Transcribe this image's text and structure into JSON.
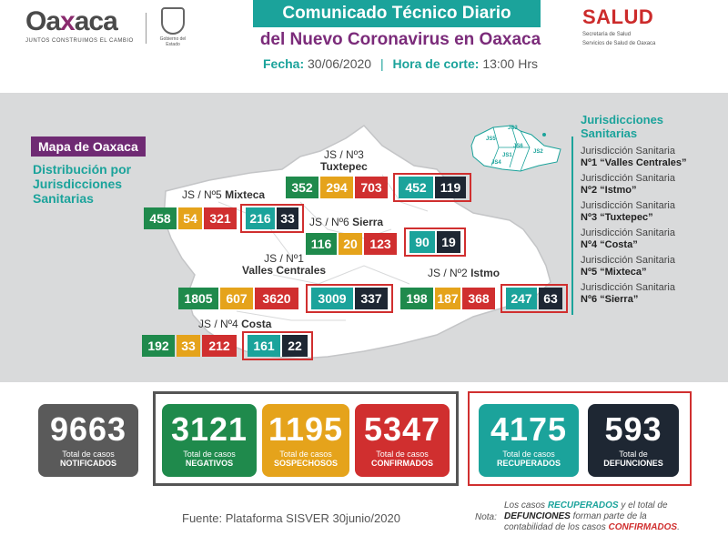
{
  "header": {
    "logo_word_1": "Oa",
    "logo_x": "x",
    "logo_word_2": "aca",
    "logo_tagline": "JUNTOS CONSTRUIMOS EL CAMBIO",
    "seal_caption": "Gobierno del Estado",
    "title": "Comunicado Técnico Diario",
    "subtitle": "del Nuevo Coronavirus en Oaxaca",
    "fecha_label": "Fecha:",
    "fecha_value": "30/06/2020",
    "hora_label": "Hora de corte:",
    "hora_value": "13:00 Hrs",
    "salud": "SALUD",
    "salud_sub_1": "Secretaría de Salud",
    "salud_sub_2": "Servicios de Salud de Oaxaca"
  },
  "map": {
    "mapa_label": "Mapa de Oaxaca",
    "distrib_1": "Distribución por",
    "distrib_2": "Jurisdicciones",
    "distrib_3": "Sanitarias",
    "jurisdictions": [
      {
        "label_1": "JS / Nº3",
        "label_2": "Tuxtepec",
        "values": [
          "352",
          "294",
          "703",
          "452",
          "119"
        ]
      },
      {
        "label_1": "JS / Nº5",
        "label_2": "Mixteca",
        "values": [
          "458",
          "54",
          "321",
          "216",
          "33"
        ]
      },
      {
        "label_1": "JS / Nº6",
        "label_2": "Sierra",
        "values": [
          "116",
          "20",
          "123",
          "90",
          "19"
        ]
      },
      {
        "label_1": "JS / Nº1",
        "label_2": "Valles Centrales",
        "values": [
          "1805",
          "607",
          "3620",
          "3009",
          "337"
        ]
      },
      {
        "label_1": "JS / Nº2",
        "label_2": "Istmo",
        "values": [
          "198",
          "187",
          "368",
          "247",
          "63"
        ]
      },
      {
        "label_1": "JS / Nº4",
        "label_2": "Costa",
        "values": [
          "192",
          "33",
          "212",
          "161",
          "22"
        ]
      }
    ],
    "mini_labels": [
      "JS3",
      "JS5",
      "JS6",
      "JS1",
      "JS4",
      "JS2"
    ]
  },
  "legend": {
    "title_1": "Jurisdicciones",
    "title_2": "Sanitarias",
    "items": [
      {
        "line_1": "Jurisdicción Sanitaria",
        "line_2": "Nº1 “Valles Centrales”"
      },
      {
        "line_1": "Jurisdicción Sanitaria",
        "line_2": "Nº2 “Istmo”"
      },
      {
        "line_1": "Jurisdicción Sanitaria",
        "line_2": "Nº3 “Tuxtepec”"
      },
      {
        "line_1": "Jurisdicción Sanitaria",
        "line_2": "Nº4 “Costa”"
      },
      {
        "line_1": "Jurisdicción Sanitaria",
        "line_2": "Nº5 “Mixteca”"
      },
      {
        "line_1": "Jurisdicción Sanitaria",
        "line_2": "Nº6 “Sierra”"
      }
    ]
  },
  "totals": [
    {
      "value": "9663",
      "line_1": "Total de casos",
      "line_2": "NOTIFICADOS",
      "color": "#5a5a5a"
    },
    {
      "value": "3121",
      "line_1": "Total de casos",
      "line_2": "NEGATIVOS",
      "color": "#1f8a4c"
    },
    {
      "value": "1195",
      "line_1": "Total de casos",
      "line_2": "SOSPECHOSOS",
      "color": "#e5a31b"
    },
    {
      "value": "5347",
      "line_1": "Total de casos",
      "line_2": "CONFIRMADOS",
      "color": "#d02f2f"
    },
    {
      "value": "4175",
      "line_1": "Total de casos",
      "line_2": "RECUPERADOS",
      "color": "#1ba39b"
    },
    {
      "value": "593",
      "line_1": "Total de",
      "line_2": "DEFUNCIONES",
      "color": "#1e2733"
    }
  ],
  "footer": {
    "fuente": "Fuente: Plataforma SISVER 30junio/2020",
    "nota_label": "Nota:",
    "nota_1": "Los casos ",
    "nota_recuperados": "RECUPERADOS",
    "nota_2": " y el total de",
    "nota_defunciones": "DEFUNCIONES",
    "nota_3": " forman parte de la",
    "nota_4": "contabilidad de los casos ",
    "nota_confirmados": "CONFIRMADOS",
    "nota_5": "."
  }
}
